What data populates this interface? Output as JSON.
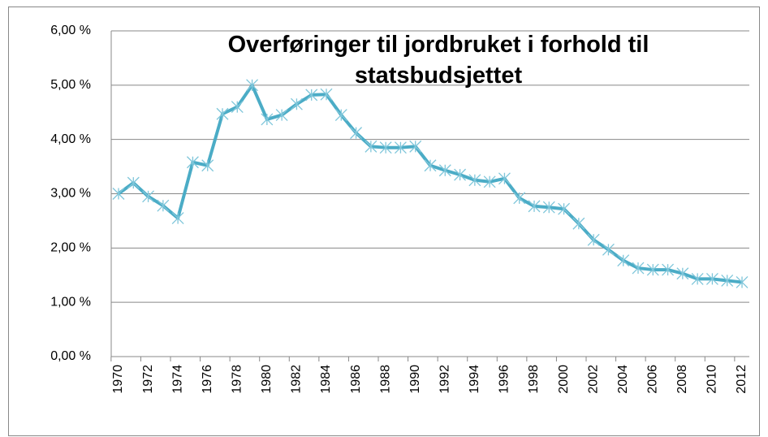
{
  "chart_data": {
    "type": "line",
    "title": "Overføringer til jordbruket i forhold til statsbudsjettet",
    "x": [
      1970,
      1971,
      1972,
      1973,
      1974,
      1975,
      1976,
      1977,
      1978,
      1979,
      1980,
      1981,
      1982,
      1983,
      1984,
      1985,
      1986,
      1987,
      1988,
      1989,
      1990,
      1991,
      1992,
      1993,
      1994,
      1995,
      1996,
      1997,
      1998,
      1999,
      2000,
      2001,
      2002,
      2003,
      2004,
      2005,
      2006,
      2007,
      2008,
      2009,
      2010,
      2011,
      2012
    ],
    "values": [
      3.0,
      3.2,
      2.95,
      2.78,
      2.55,
      3.58,
      3.52,
      4.47,
      4.6,
      5.0,
      4.37,
      4.45,
      4.65,
      4.82,
      4.83,
      4.45,
      4.12,
      3.87,
      3.85,
      3.85,
      3.87,
      3.52,
      3.43,
      3.35,
      3.25,
      3.22,
      3.28,
      2.92,
      2.77,
      2.75,
      2.72,
      2.45,
      2.15,
      1.97,
      1.77,
      1.63,
      1.6,
      1.6,
      1.53,
      1.43,
      1.43,
      1.4,
      1.37
    ],
    "color": "#4bacc6",
    "marker": "asterisk",
    "xlim": [
      1970,
      2012
    ],
    "xticks": [
      1970,
      1972,
      1974,
      1976,
      1978,
      1980,
      1982,
      1984,
      1986,
      1988,
      1990,
      1992,
      1994,
      1996,
      1998,
      2000,
      2002,
      2004,
      2006,
      2008,
      2010,
      2012
    ],
    "ylim": [
      0,
      6
    ],
    "yticks": [
      {
        "value": 0,
        "label": "0,00 %"
      },
      {
        "value": 1,
        "label": "1,00 %"
      },
      {
        "value": 2,
        "label": "2,00 %"
      },
      {
        "value": 3,
        "label": "3,00 %"
      },
      {
        "value": 4,
        "label": "4,00 %"
      },
      {
        "value": 5,
        "label": "5,00 %"
      },
      {
        "value": 6,
        "label": "6,00 %"
      }
    ],
    "grid": true
  }
}
